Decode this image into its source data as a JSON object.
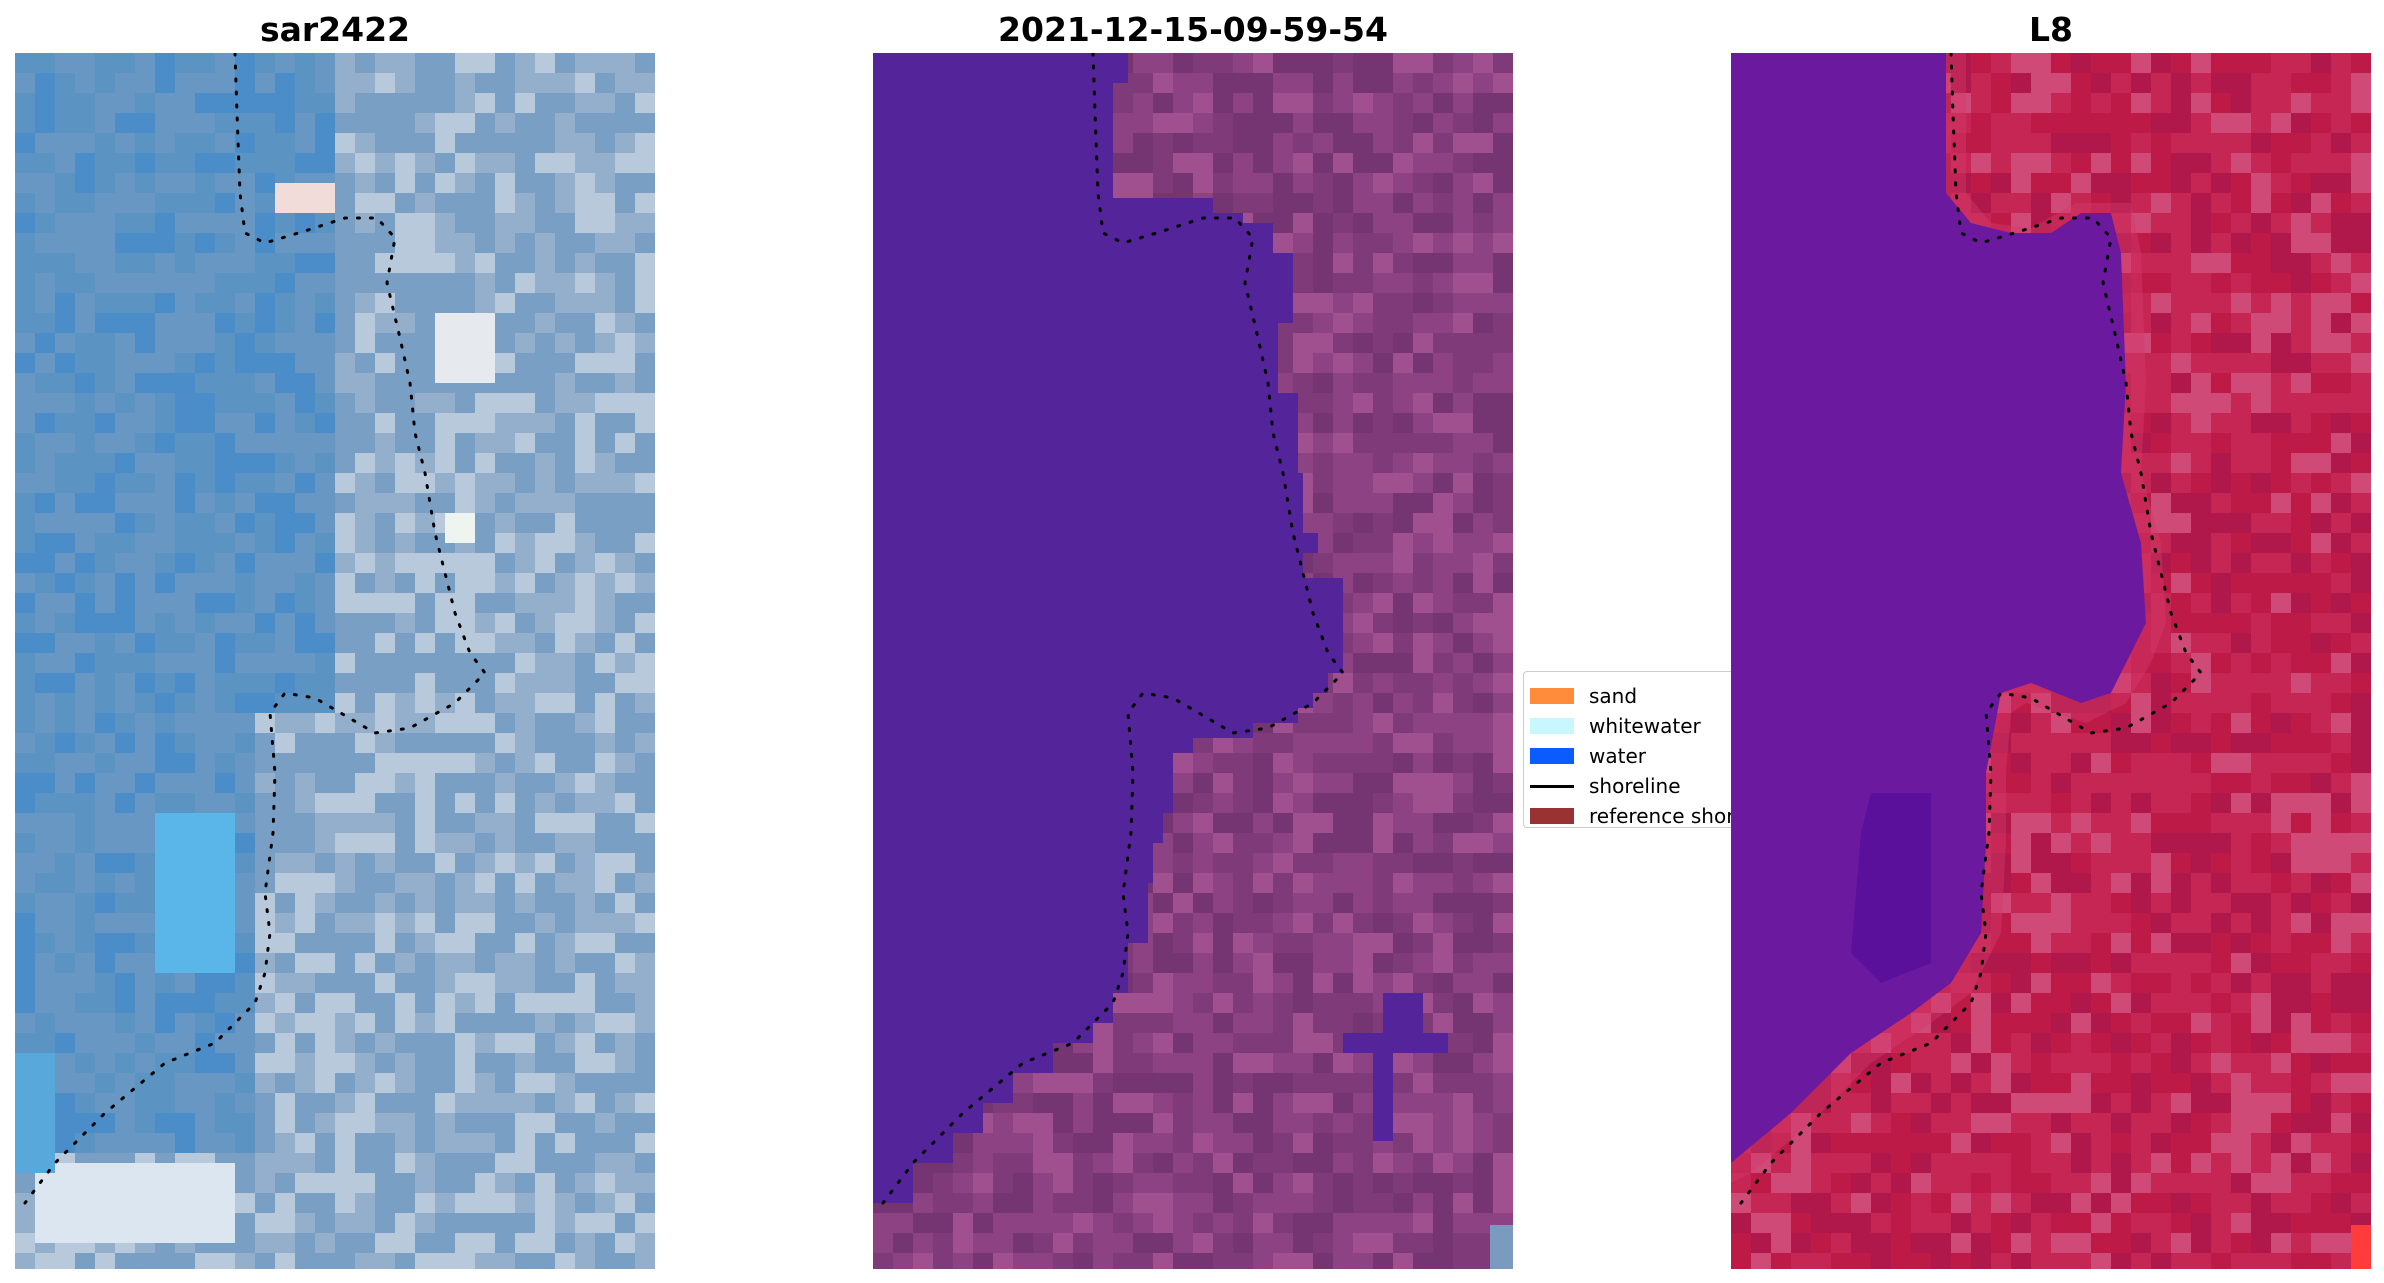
{
  "panels": [
    {
      "title": "sar2422",
      "kind": "rgb"
    },
    {
      "title": "2021-12-15-09-59-54",
      "kind": "classified"
    },
    {
      "title": "L8",
      "kind": "index"
    }
  ],
  "legend": {
    "items": [
      {
        "label": "sand",
        "type": "patch",
        "color": "#ff8c3a"
      },
      {
        "label": "whitewater",
        "type": "patch",
        "color": "#c8f7ff"
      },
      {
        "label": "water",
        "type": "patch",
        "color": "#0a5cff"
      },
      {
        "label": "shoreline",
        "type": "line",
        "color": "#000000"
      },
      {
        "label": "reference shoreline",
        "type": "patch",
        "color": "#993333"
      }
    ]
  },
  "colors": {
    "water_class": "#54249a",
    "land_class": "#8a3f7c",
    "index_water": "#6b1aa0",
    "index_land": "#c81e50"
  },
  "shoreline_marker": "dotted black line"
}
